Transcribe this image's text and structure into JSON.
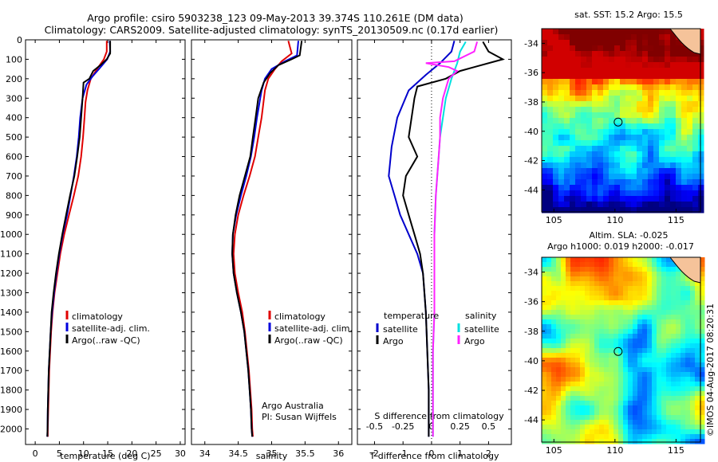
{
  "header": {
    "line1": "Argo profile: csiro 5903238_123 09-May-2013 39.374S 110.261E (DM data)",
    "line2": "Climatology: CARS2009. Satellite-adjusted climatology: synTS_20130509.nc (0.17d earlier)"
  },
  "chart_data": [
    {
      "type": "line",
      "name": "temperature-profile",
      "xlabel": "temperature (deg C)",
      "ylabel": "",
      "xlim": [
        -2,
        31
      ],
      "ylim": [
        2080,
        0
      ],
      "xticks": [
        0,
        5,
        10,
        15,
        20,
        25,
        30
      ],
      "yticks": [
        0,
        100,
        200,
        300,
        400,
        500,
        600,
        700,
        800,
        900,
        1000,
        1100,
        1200,
        1300,
        1400,
        1500,
        1600,
        1700,
        1800,
        1900,
        2000
      ],
      "legend": [
        "climatology",
        "satellite-adj. clim.",
        "Argo(..raw -QC)"
      ],
      "series": [
        {
          "name": "climatology",
          "color": "#e00000",
          "points": [
            [
              14.8,
              5
            ],
            [
              14.8,
              60
            ],
            [
              14.2,
              100
            ],
            [
              12.8,
              150
            ],
            [
              11.5,
              200
            ],
            [
              10.8,
              260
            ],
            [
              10.4,
              320
            ],
            [
              10.2,
              400
            ],
            [
              9.9,
              500
            ],
            [
              9.5,
              600
            ],
            [
              8.9,
              700
            ],
            [
              8.0,
              800
            ],
            [
              7.0,
              900
            ],
            [
              6.0,
              1000
            ],
            [
              5.2,
              1100
            ],
            [
              4.6,
              1200
            ],
            [
              4.0,
              1300
            ],
            [
              3.6,
              1400
            ],
            [
              3.3,
              1500
            ],
            [
              3.1,
              1600
            ],
            [
              2.9,
              1700
            ],
            [
              2.8,
              1800
            ],
            [
              2.7,
              1900
            ],
            [
              2.6,
              2000
            ],
            [
              2.6,
              2040
            ]
          ]
        },
        {
          "name": "satellite-adj. clim.",
          "color": "#0000dd",
          "points": [
            [
              15.4,
              5
            ],
            [
              15.5,
              60
            ],
            [
              14.9,
              100
            ],
            [
              13.2,
              150
            ],
            [
              11.8,
              190
            ],
            [
              10.6,
              230
            ],
            [
              9.8,
              300
            ],
            [
              9.3,
              400
            ],
            [
              9.0,
              500
            ],
            [
              8.6,
              600
            ],
            [
              8.0,
              700
            ],
            [
              7.3,
              800
            ],
            [
              6.6,
              900
            ],
            [
              5.7,
              1000
            ],
            [
              5.0,
              1100
            ],
            [
              4.4,
              1200
            ],
            [
              3.9,
              1300
            ],
            [
              3.5,
              1400
            ],
            [
              3.2,
              1500
            ],
            [
              3.0,
              1600
            ],
            [
              2.8,
              1700
            ],
            [
              2.7,
              1800
            ],
            [
              2.6,
              1900
            ],
            [
              2.55,
              2000
            ],
            [
              2.5,
              2040
            ]
          ]
        },
        {
          "name": "Argo(..raw -QC)",
          "color": "#000000",
          "points": [
            [
              15.5,
              5
            ],
            [
              15.5,
              70
            ],
            [
              14.8,
              100
            ],
            [
              13.5,
              130
            ],
            [
              12.0,
              160
            ],
            [
              11.2,
              200
            ],
            [
              10.0,
              220
            ],
            [
              9.8,
              300
            ],
            [
              9.5,
              400
            ],
            [
              9.2,
              500
            ],
            [
              8.7,
              600
            ],
            [
              8.1,
              700
            ],
            [
              7.2,
              800
            ],
            [
              6.4,
              900
            ],
            [
              5.6,
              1000
            ],
            [
              4.9,
              1100
            ],
            [
              4.3,
              1200
            ],
            [
              3.8,
              1300
            ],
            [
              3.4,
              1400
            ],
            [
              3.2,
              1500
            ],
            [
              3.0,
              1600
            ],
            [
              2.8,
              1700
            ],
            [
              2.7,
              1800
            ],
            [
              2.6,
              1900
            ],
            [
              2.55,
              2000
            ],
            [
              2.5,
              2040
            ]
          ]
        }
      ]
    },
    {
      "type": "line",
      "name": "salinity-profile",
      "xlabel": "salinity",
      "ylabel": "",
      "xlim": [
        33.8,
        36.2
      ],
      "ylim": [
        2080,
        0
      ],
      "xticks": [
        34,
        34.5,
        35,
        35.5,
        36
      ],
      "legend": [
        "climatology",
        "satellite-adj. clim.",
        "Argo(..raw -QC)"
      ],
      "annotation": [
        "Argo Australia",
        "PI: Susan Wijffels"
      ],
      "series": [
        {
          "name": "climatology",
          "color": "#e00000",
          "points": [
            [
              35.25,
              5
            ],
            [
              35.3,
              70
            ],
            [
              35.15,
              110
            ],
            [
              35.05,
              150
            ],
            [
              34.95,
              200
            ],
            [
              34.9,
              260
            ],
            [
              34.85,
              400
            ],
            [
              34.8,
              500
            ],
            [
              34.75,
              600
            ],
            [
              34.67,
              700
            ],
            [
              34.58,
              800
            ],
            [
              34.5,
              900
            ],
            [
              34.45,
              1000
            ],
            [
              34.43,
              1100
            ],
            [
              34.45,
              1200
            ],
            [
              34.5,
              1300
            ],
            [
              34.56,
              1400
            ],
            [
              34.6,
              1500
            ],
            [
              34.63,
              1600
            ],
            [
              34.66,
              1700
            ],
            [
              34.68,
              1800
            ],
            [
              34.7,
              1900
            ],
            [
              34.71,
              2000
            ],
            [
              34.72,
              2040
            ]
          ]
        },
        {
          "name": "satellite-adj. clim.",
          "color": "#0000dd",
          "points": [
            [
              35.4,
              5
            ],
            [
              35.38,
              80
            ],
            [
              35.2,
              110
            ],
            [
              35.0,
              150
            ],
            [
              34.9,
              200
            ],
            [
              34.85,
              260
            ],
            [
              34.78,
              400
            ],
            [
              34.74,
              500
            ],
            [
              34.69,
              600
            ],
            [
              34.62,
              700
            ],
            [
              34.54,
              800
            ],
            [
              34.47,
              900
            ],
            [
              34.42,
              1000
            ],
            [
              34.41,
              1100
            ],
            [
              34.43,
              1200
            ],
            [
              34.48,
              1300
            ],
            [
              34.54,
              1400
            ],
            [
              34.59,
              1500
            ],
            [
              34.62,
              1600
            ],
            [
              34.65,
              1700
            ],
            [
              34.67,
              1800
            ],
            [
              34.69,
              1900
            ],
            [
              34.7,
              2000
            ],
            [
              34.71,
              2040
            ]
          ]
        },
        {
          "name": "Argo(..raw -QC)",
          "color": "#000000",
          "points": [
            [
              35.45,
              5
            ],
            [
              35.42,
              80
            ],
            [
              35.3,
              100
            ],
            [
              35.1,
              130
            ],
            [
              34.98,
              170
            ],
            [
              34.88,
              220
            ],
            [
              34.8,
              300
            ],
            [
              34.76,
              400
            ],
            [
              34.72,
              500
            ],
            [
              34.68,
              600
            ],
            [
              34.6,
              700
            ],
            [
              34.52,
              800
            ],
            [
              34.46,
              900
            ],
            [
              34.42,
              1000
            ],
            [
              34.41,
              1100
            ],
            [
              34.43,
              1200
            ],
            [
              34.48,
              1300
            ],
            [
              34.54,
              1400
            ],
            [
              34.59,
              1500
            ],
            [
              34.62,
              1600
            ],
            [
              34.65,
              1700
            ],
            [
              34.67,
              1800
            ],
            [
              34.69,
              1900
            ],
            [
              34.7,
              2000
            ],
            [
              34.71,
              2040
            ]
          ]
        }
      ]
    },
    {
      "type": "line",
      "name": "difference-from-climatology",
      "xlabel": "T difference from climatology",
      "toplabel": "S difference from climatology",
      "xlim": [
        -2.6,
        2.8
      ],
      "ylim": [
        2080,
        0
      ],
      "xticks": [
        -2,
        -1,
        0,
        1,
        2
      ],
      "s_ticks_label": [
        "-0.5",
        "-0.25",
        "0",
        "0.25",
        "0.5"
      ],
      "s_ticks_pos": [
        -2,
        -1,
        0,
        1,
        2
      ],
      "legend_titles": [
        "temperature",
        "salinity"
      ],
      "legend": [
        "satellite",
        "Argo",
        "satellite",
        "Argo"
      ],
      "series": [
        {
          "name": "temperature satellite",
          "color": "#0000cc",
          "points": [
            [
              0.8,
              5
            ],
            [
              0.7,
              60
            ],
            [
              0.3,
              120
            ],
            [
              -0.2,
              180
            ],
            [
              -0.8,
              260
            ],
            [
              -1.2,
              400
            ],
            [
              -1.4,
              550
            ],
            [
              -1.5,
              700
            ],
            [
              -1.3,
              800
            ],
            [
              -1.1,
              900
            ],
            [
              -0.8,
              1000
            ],
            [
              -0.5,
              1100
            ],
            [
              -0.3,
              1200
            ],
            [
              -0.2,
              1400
            ],
            [
              -0.15,
              1600
            ],
            [
              -0.1,
              1800
            ],
            [
              -0.1,
              2040
            ]
          ]
        },
        {
          "name": "temperature Argo",
          "color": "#000000",
          "points": [
            [
              1.8,
              10
            ],
            [
              2.0,
              60
            ],
            [
              2.5,
              100
            ],
            [
              1.5,
              140
            ],
            [
              1.0,
              160
            ],
            [
              0.5,
              200
            ],
            [
              -0.5,
              240
            ],
            [
              -0.6,
              300
            ],
            [
              -0.7,
              400
            ],
            [
              -0.8,
              500
            ],
            [
              -0.5,
              600
            ],
            [
              -0.9,
              700
            ],
            [
              -1.0,
              800
            ],
            [
              -0.8,
              900
            ],
            [
              -0.6,
              1000
            ],
            [
              -0.4,
              1100
            ],
            [
              -0.3,
              1200
            ],
            [
              -0.2,
              1400
            ],
            [
              -0.15,
              1600
            ],
            [
              -0.1,
              1800
            ],
            [
              -0.1,
              2040
            ]
          ]
        },
        {
          "name": "salinity satellite",
          "color": "#00e0e0",
          "points": [
            [
              1.2,
              10
            ],
            [
              1.0,
              60
            ],
            [
              0.9,
              120
            ],
            [
              0.7,
              200
            ],
            [
              0.5,
              300
            ],
            [
              0.4,
              400
            ],
            [
              0.3,
              500
            ],
            [
              0.25,
              600
            ],
            [
              0.2,
              700
            ],
            [
              0.15,
              800
            ],
            [
              0.1,
              1000
            ],
            [
              0.1,
              1200
            ],
            [
              0.1,
              1400
            ],
            [
              0.05,
              1600
            ],
            [
              0.05,
              1800
            ],
            [
              0.05,
              2040
            ]
          ]
        },
        {
          "name": "salinity Argo",
          "color": "#ff22ff",
          "points": [
            [
              1.6,
              10
            ],
            [
              1.5,
              60
            ],
            [
              0.8,
              110
            ],
            [
              -0.2,
              120
            ],
            [
              0.6,
              140
            ],
            [
              0.9,
              160
            ],
            [
              0.6,
              200
            ],
            [
              0.4,
              300
            ],
            [
              0.3,
              400
            ],
            [
              0.3,
              500
            ],
            [
              0.25,
              600
            ],
            [
              0.2,
              700
            ],
            [
              0.15,
              800
            ],
            [
              0.1,
              1000
            ],
            [
              0.1,
              1200
            ],
            [
              0.1,
              1400
            ],
            [
              0.05,
              1600
            ],
            [
              0.05,
              1800
            ],
            [
              0.05,
              2040
            ]
          ]
        }
      ]
    },
    {
      "type": "heatmap",
      "name": "sst-map",
      "title": "sat. SST: 15.2  Argo: 15.5",
      "xlim": [
        104,
        117
      ],
      "ylim": [
        -45.5,
        -33
      ],
      "xticks": [
        105,
        110,
        115
      ],
      "yticks": [
        -34,
        -36,
        -38,
        -40,
        -42,
        -44
      ],
      "marker": [
        110.26,
        -39.37
      ]
    },
    {
      "type": "heatmap",
      "name": "sla-map",
      "title": "Altim. SLA: -0.025",
      "subtitle": "Argo h1000: 0.019 h2000: -0.017",
      "xlim": [
        104,
        117
      ],
      "ylim": [
        -45.5,
        -33
      ],
      "xticks": [
        105,
        110,
        115
      ],
      "yticks": [
        -34,
        -36,
        -38,
        -40,
        -42,
        -44
      ],
      "marker": [
        110.26,
        -39.37
      ]
    }
  ],
  "credit": "©IMOS 04-Aug-2017 08:20:31"
}
